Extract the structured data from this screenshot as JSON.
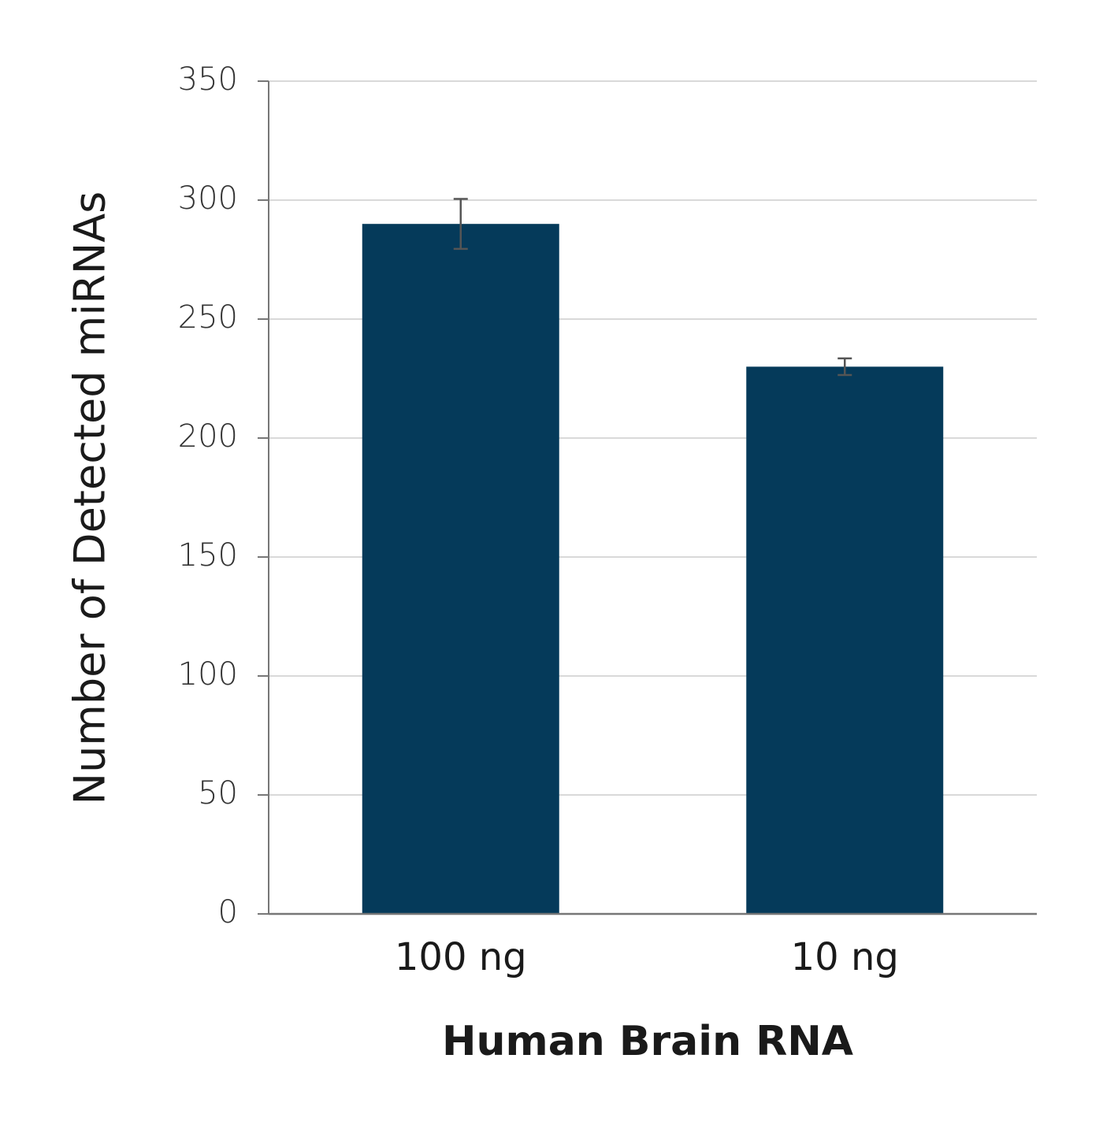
{
  "chart_data": {
    "type": "bar",
    "x_label": "Human Brain RNA",
    "y_label": "Number of Detected miRNAs",
    "categories": [
      "100 ng",
      "10 ng"
    ],
    "values": [
      290,
      230
    ],
    "errors": [
      10.5,
      3.5
    ],
    "color": "#053a5a",
    "ylim": [
      0,
      350
    ],
    "yticks": [
      0,
      50,
      100,
      150,
      200,
      250,
      300,
      350
    ],
    "grid": true
  }
}
